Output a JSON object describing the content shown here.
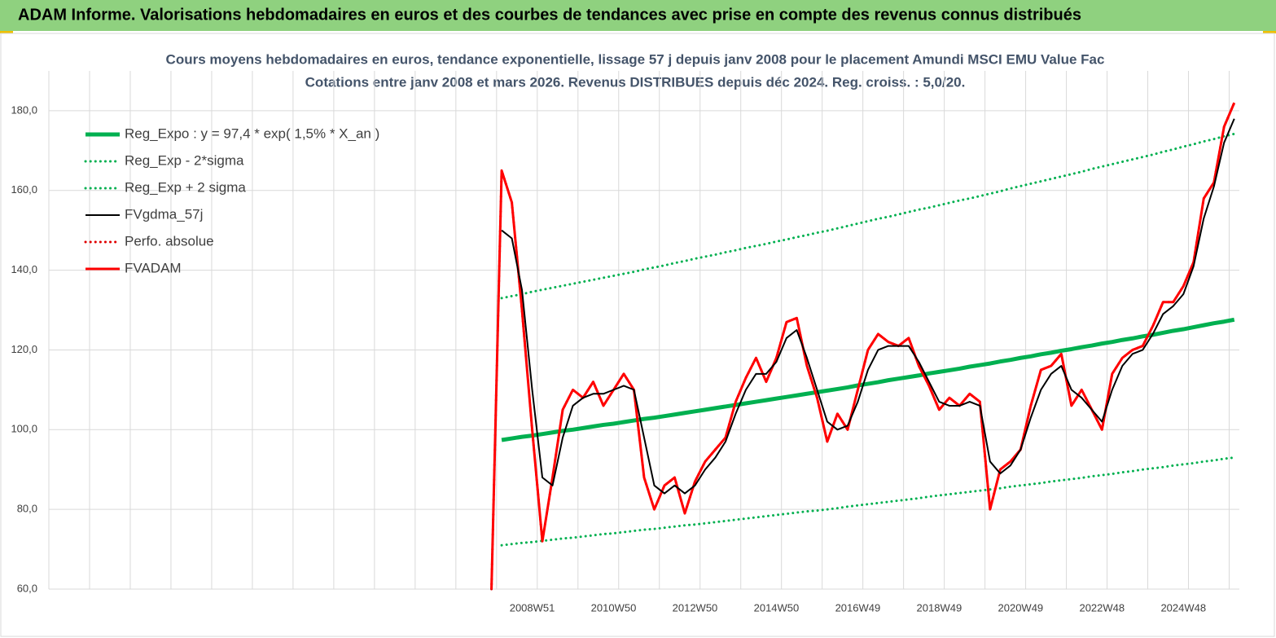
{
  "header": {
    "title": "ADAM Informe. Valorisations hebdomadaires en euros et des courbes de tendances avec prise en compte des revenus connus distribués"
  },
  "chart_data": {
    "type": "line",
    "title": "Cours moyens hebdomadaires en euros, tendance exponentielle, lissage 57 j depuis janv 2008  pour le placement Amundi MSCI EMU Value Fac",
    "subtitle": "Cotations entre janv 2008 et mars 2026. Revenus DISTRIBUES depuis déc 2024. Reg. croiss. : 5,0/20.",
    "categories": [
      null,
      null,
      null,
      null,
      null,
      null,
      null,
      null,
      null,
      null,
      null,
      null,
      null,
      null,
      null,
      null,
      null,
      null,
      null,
      null,
      null,
      null,
      null,
      null,
      null,
      null,
      null,
      null,
      null,
      null,
      null,
      null,
      null,
      null,
      null,
      null,
      null,
      null,
      null,
      null,
      null,
      null,
      null,
      null,
      null,
      null,
      null,
      "2008W51",
      null,
      null,
      null,
      null,
      null,
      null,
      null,
      "2010W50",
      null,
      null,
      null,
      null,
      null,
      null,
      null,
      "2012W50",
      null,
      null,
      null,
      null,
      null,
      null,
      null,
      "2014W50",
      null,
      null,
      null,
      null,
      null,
      null,
      null,
      "2016W49",
      null,
      null,
      null,
      null,
      null,
      null,
      null,
      "2018W49",
      null,
      null,
      null,
      null,
      null,
      null,
      null,
      "2020W49",
      null,
      null,
      null,
      null,
      null,
      null,
      null,
      "2022W48",
      null,
      null,
      null,
      null,
      null,
      null,
      null,
      "2024W48",
      null,
      null,
      null,
      null,
      null
    ],
    "ylim": [
      60,
      190
    ],
    "yticks": [
      {
        "value": 60,
        "label": "60,0"
      },
      {
        "value": 80,
        "label": "80,0"
      },
      {
        "value": 100,
        "label": "100,0"
      },
      {
        "value": 120,
        "label": "120,0"
      },
      {
        "value": 140,
        "label": "140,0"
      },
      {
        "value": 160,
        "label": "160,0"
      },
      {
        "value": 180,
        "label": "180,0"
      }
    ],
    "grid": true,
    "legend": "top-left",
    "series": [
      {
        "name": "Reg_Expo : y = 97,4 * exp( 1,5% *  X_an )",
        "color": "#00b050",
        "style": "solid",
        "values": [
          null,
          null,
          null,
          null,
          null,
          null,
          null,
          null,
          null,
          null,
          null,
          null,
          null,
          null,
          null,
          null,
          null,
          null,
          null,
          null,
          null,
          null,
          null,
          null,
          null,
          null,
          null,
          null,
          null,
          null,
          null,
          null,
          null,
          null,
          null,
          null,
          null,
          null,
          null,
          null,
          null,
          null,
          null,
          null,
          97.4,
          97.8,
          98.2,
          98.5,
          98.9,
          99.3,
          99.7,
          100.0,
          100.4,
          100.8,
          101.2,
          101.5,
          101.9,
          102.3,
          102.7,
          103.0,
          103.4,
          103.8,
          104.2,
          104.6,
          105.0,
          105.4,
          105.8,
          106.2,
          106.6,
          107.0,
          107.4,
          107.8,
          108.2,
          108.6,
          109.0,
          109.4,
          109.8,
          110.2,
          110.6,
          111.1,
          111.5,
          111.9,
          112.4,
          112.8,
          113.2,
          113.6,
          114.1,
          114.5,
          114.9,
          115.3,
          115.8,
          116.2,
          116.6,
          117.1,
          117.5,
          118.0,
          118.4,
          118.9,
          119.3,
          119.8,
          120.2,
          120.7,
          121.1,
          121.6,
          122.0,
          122.5,
          122.9,
          123.4,
          123.8,
          124.3,
          124.8,
          125.2,
          125.7,
          126.2,
          126.7,
          127.1,
          127.6
        ]
      },
      {
        "name": "Reg_Exp - 2*sigma",
        "color": "#00b050",
        "style": "dotted",
        "values": [
          null,
          null,
          null,
          null,
          null,
          null,
          null,
          null,
          null,
          null,
          null,
          null,
          null,
          null,
          null,
          null,
          null,
          null,
          null,
          null,
          null,
          null,
          null,
          null,
          null,
          null,
          null,
          null,
          null,
          null,
          null,
          null,
          null,
          null,
          null,
          null,
          null,
          null,
          null,
          null,
          null,
          null,
          null,
          null,
          71.0,
          71.3,
          71.6,
          71.8,
          72.1,
          72.4,
          72.7,
          72.9,
          73.2,
          73.5,
          73.8,
          74.0,
          74.3,
          74.6,
          74.9,
          75.1,
          75.4,
          75.7,
          76.0,
          76.2,
          76.5,
          76.8,
          77.1,
          77.4,
          77.7,
          78.0,
          78.3,
          78.6,
          78.9,
          79.2,
          79.5,
          79.7,
          80.0,
          80.3,
          80.7,
          81.0,
          81.3,
          81.6,
          81.9,
          82.2,
          82.5,
          82.8,
          83.2,
          83.5,
          83.8,
          84.1,
          84.4,
          84.7,
          85.0,
          85.3,
          85.7,
          86.0,
          86.3,
          86.6,
          87.0,
          87.3,
          87.6,
          87.9,
          88.3,
          88.6,
          88.9,
          89.3,
          89.6,
          90.0,
          90.3,
          90.6,
          91.0,
          91.3,
          91.6,
          92.0,
          92.3,
          92.7,
          93.0
        ]
      },
      {
        "name": "Reg_Exp + 2 sigma",
        "color": "#00b050",
        "style": "dotted",
        "values": [
          null,
          null,
          null,
          null,
          null,
          null,
          null,
          null,
          null,
          null,
          null,
          null,
          null,
          null,
          null,
          null,
          null,
          null,
          null,
          null,
          null,
          null,
          null,
          null,
          null,
          null,
          null,
          null,
          null,
          null,
          null,
          null,
          null,
          null,
          null,
          null,
          null,
          null,
          null,
          null,
          null,
          null,
          null,
          null,
          133.0,
          133.5,
          134.0,
          134.6,
          135.1,
          135.6,
          136.1,
          136.6,
          137.1,
          137.6,
          138.1,
          138.6,
          139.1,
          139.6,
          140.2,
          140.7,
          141.2,
          141.8,
          142.3,
          142.9,
          143.4,
          143.9,
          144.5,
          145.0,
          145.6,
          146.1,
          146.6,
          147.2,
          147.7,
          148.3,
          148.8,
          149.4,
          149.9,
          150.5,
          151.1,
          151.7,
          152.3,
          152.9,
          153.4,
          154.0,
          154.6,
          155.2,
          155.7,
          156.3,
          156.9,
          157.5,
          158.0,
          158.6,
          159.2,
          159.8,
          160.5,
          161.1,
          161.7,
          162.3,
          162.9,
          163.5,
          164.1,
          164.7,
          165.4,
          166.0,
          166.6,
          167.2,
          167.8,
          168.4,
          169.0,
          169.7,
          170.3,
          171.0,
          171.6,
          172.3,
          172.9,
          173.6,
          174.2
        ]
      },
      {
        "name": "FVgdma_57j",
        "color": "#000000",
        "style": "solid",
        "values": [
          null,
          null,
          null,
          null,
          null,
          null,
          null,
          null,
          null,
          null,
          null,
          null,
          null,
          null,
          null,
          null,
          null,
          null,
          null,
          null,
          null,
          null,
          null,
          null,
          null,
          null,
          null,
          null,
          null,
          null,
          null,
          null,
          null,
          null,
          null,
          null,
          null,
          null,
          null,
          null,
          null,
          null,
          null,
          null,
          150,
          148,
          135,
          110,
          88,
          86,
          98,
          106,
          108,
          109,
          109,
          110,
          111,
          110,
          98,
          86,
          84,
          86,
          84,
          86,
          90,
          93,
          97,
          104,
          110,
          114,
          114,
          117,
          123,
          125,
          118,
          110,
          102,
          100,
          101,
          107,
          115,
          120,
          121,
          121,
          121,
          117,
          112,
          107,
          106,
          106,
          107,
          106,
          92,
          89,
          91,
          95,
          103,
          110,
          114,
          116,
          110,
          108,
          105,
          102,
          110,
          116,
          119,
          120,
          124,
          129,
          131,
          134,
          141,
          153,
          161,
          172,
          178
        ]
      },
      {
        "name": "Perfo. absolue",
        "color": "#e00000",
        "style": "dotted",
        "values": [
          null,
          null,
          null,
          null,
          null,
          null,
          null,
          null,
          null,
          null,
          null,
          null,
          null,
          null,
          null,
          null,
          null,
          null,
          null,
          null,
          null,
          null,
          null,
          null,
          null,
          null,
          null,
          null,
          null,
          null,
          null,
          null,
          null,
          null,
          null,
          null,
          null,
          null,
          null,
          null,
          null,
          null,
          null,
          60,
          165,
          157,
          130,
          100,
          72,
          88,
          105,
          110,
          108,
          112,
          106,
          110,
          114,
          110,
          88,
          80,
          86,
          88,
          79,
          87,
          92,
          95,
          98,
          107,
          113,
          118,
          112,
          118,
          127,
          128,
          116,
          108,
          97,
          104,
          100,
          110,
          120,
          124,
          122,
          121,
          123,
          116,
          111,
          105,
          108,
          106,
          109,
          107,
          80,
          90,
          92,
          95,
          106,
          115,
          116,
          119,
          106,
          110,
          105,
          100,
          114,
          118,
          120,
          121,
          126,
          132,
          132,
          136,
          142,
          158,
          162,
          176,
          182
        ]
      },
      {
        "name": "FVADAM",
        "color": "#ff0000",
        "style": "solid",
        "values": [
          null,
          null,
          null,
          null,
          null,
          null,
          null,
          null,
          null,
          null,
          null,
          null,
          null,
          null,
          null,
          null,
          null,
          null,
          null,
          null,
          null,
          null,
          null,
          null,
          null,
          null,
          null,
          null,
          null,
          null,
          null,
          null,
          null,
          null,
          null,
          null,
          null,
          null,
          null,
          null,
          null,
          null,
          null,
          60,
          165,
          157,
          130,
          100,
          72,
          88,
          105,
          110,
          108,
          112,
          106,
          110,
          114,
          110,
          88,
          80,
          86,
          88,
          79,
          87,
          92,
          95,
          98,
          107,
          113,
          118,
          112,
          118,
          127,
          128,
          116,
          108,
          97,
          104,
          100,
          110,
          120,
          124,
          122,
          121,
          123,
          116,
          111,
          105,
          108,
          106,
          109,
          107,
          80,
          90,
          92,
          95,
          106,
          115,
          116,
          119,
          106,
          110,
          105,
          100,
          114,
          118,
          120,
          121,
          126,
          132,
          132,
          136,
          142,
          158,
          162,
          176,
          182
        ]
      }
    ]
  }
}
